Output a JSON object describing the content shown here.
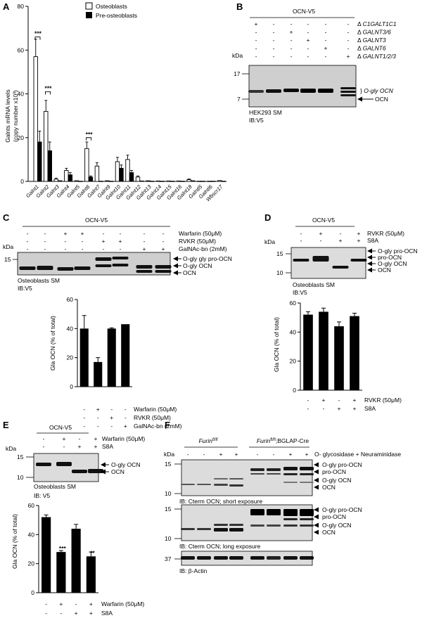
{
  "panelA": {
    "letter": "A",
    "ylabel_line1": "Galnts mRNA levels",
    "ylabel_line2": "(copy number x10³)",
    "legend": [
      "Osteoblasts",
      "Pre-osteoblasts"
    ],
    "significance": "***"
  },
  "chart_data": [
    {
      "type": "bar",
      "panel": "A",
      "ylabel": "Galnts mRNA levels (copy number x10³)",
      "ylim": [
        0,
        80
      ],
      "yticks": [
        0,
        20,
        40,
        60,
        80
      ],
      "categories": [
        "Galnt1",
        "Galnt2",
        "Galnt3",
        "Galnt4",
        "Galnt5",
        "Galnt6",
        "Galnt7",
        "Galnt9",
        "Galnt10",
        "Galnt11",
        "Galnt12",
        "Galnt13",
        "Galnt14",
        "Galnt15",
        "Galnt16",
        "Galnt18",
        "Galntl5",
        "Galntl6",
        "Wbscr17"
      ],
      "series": [
        {
          "name": "Osteoblasts",
          "values": [
            57,
            32,
            1,
            5,
            0.3,
            15,
            7,
            0.3,
            9,
            10,
            2,
            0.3,
            0.2,
            0.2,
            0.2,
            0.8,
            0.1,
            0.1,
            0.4
          ],
          "errors": [
            8,
            5,
            0.5,
            1,
            0.1,
            3,
            1.5,
            0.1,
            2,
            2,
            0.5,
            0.1,
            0.1,
            0.1,
            0.1,
            0.3,
            0.1,
            0.1,
            0.1
          ]
        },
        {
          "name": "Pre-osteoblasts",
          "values": [
            18,
            14,
            0.3,
            3,
            0.1,
            2,
            0.1,
            0.1,
            6,
            4,
            0.2,
            0.1,
            0.1,
            0.1,
            0.1,
            0.3,
            0.1,
            0.1,
            0.1
          ],
          "errors": [
            5,
            4,
            0.2,
            1,
            0.1,
            0.5,
            0.1,
            0.1,
            1.5,
            1,
            0.1,
            0.1,
            0.1,
            0.1,
            0.1,
            0.1,
            0.1,
            0.1,
            0.1
          ]
        }
      ]
    },
    {
      "type": "bar",
      "panel": "C",
      "ylabel": "Gla OCN (% of total)",
      "ylim": [
        0,
        60
      ],
      "yticks": [
        0,
        20,
        40,
        60
      ],
      "conditions": [
        "Warfarin (50μM)",
        "RVKR (50μM)",
        "GalNAc-bn (2mM)"
      ],
      "signs": [
        [
          "-",
          "+",
          "-",
          "-"
        ],
        [
          "-",
          "-",
          "+",
          "-"
        ],
        [
          "-",
          "-",
          "-",
          "+"
        ]
      ],
      "values": [
        40,
        17,
        40,
        43
      ],
      "errors": [
        9,
        3,
        0.5,
        0
      ]
    },
    {
      "type": "bar",
      "panel": "D",
      "ylabel": "Gla OCN (% of total)",
      "ylim": [
        0,
        60
      ],
      "yticks": [
        0,
        20,
        40,
        60
      ],
      "conditions": [
        "RVKR (50μM)",
        "S8A"
      ],
      "signs": [
        [
          "-",
          "+",
          "-",
          "+"
        ],
        [
          "-",
          "-",
          "+",
          "+"
        ]
      ],
      "values": [
        52,
        54,
        44,
        51
      ],
      "errors": [
        2,
        2.5,
        3,
        2
      ]
    },
    {
      "type": "bar",
      "panel": "E",
      "ylabel": "Gla OCN (% of total)",
      "ylim": [
        0,
        60
      ],
      "yticks": [
        0,
        20,
        40,
        60
      ],
      "conditions": [
        "Warfarin (50μM)",
        "S8A"
      ],
      "signs": [
        [
          "-",
          "+",
          "-",
          "+"
        ],
        [
          "-",
          "-",
          "+",
          "+"
        ]
      ],
      "values": [
        52,
        28,
        44,
        25
      ],
      "errors": [
        1.5,
        1,
        3,
        3
      ],
      "significance": [
        "",
        "***",
        "",
        "**"
      ]
    }
  ],
  "panelB": {
    "letter": "B",
    "construct": "OCN-V5",
    "rows": [
      {
        "label": "Δ C1GALT1C1",
        "signs": [
          "+",
          "-",
          "-",
          "-",
          "-",
          "-"
        ]
      },
      {
        "label": "Δ GALNT3/6",
        "signs": [
          "-",
          "-",
          "+",
          "-",
          "-",
          "-"
        ]
      },
      {
        "label": "Δ GALNT3",
        "signs": [
          "-",
          "-",
          "-",
          "+",
          "-",
          "-"
        ]
      },
      {
        "label": "Δ GALNT6",
        "signs": [
          "-",
          "-",
          "-",
          "-",
          "+",
          "-"
        ]
      },
      {
        "label": "Δ GALNT1/2/3",
        "signs": [
          "-",
          "-",
          "-",
          "-",
          "-",
          "+"
        ]
      }
    ],
    "kda": "kDa",
    "markers": [
      "17",
      "7"
    ],
    "band_labels": [
      "O-gly OCN",
      "OCN"
    ],
    "caption1": "HEK293 SM",
    "caption2": "IB:V5"
  },
  "panelC": {
    "letter": "C",
    "construct": "OCN-V5",
    "rows": [
      {
        "label": "Warfarin (50μM)",
        "signs": [
          "-",
          "-",
          "+",
          "+",
          "-",
          "-",
          "-",
          "-"
        ]
      },
      {
        "label": "RVKR (50μM)",
        "signs": [
          "-",
          "-",
          "-",
          "-",
          "+",
          "+",
          "-",
          "-"
        ]
      },
      {
        "label": "GalNAc-bn (2mM)",
        "signs": [
          "-",
          "-",
          "-",
          "-",
          "-",
          "-",
          "+",
          "+"
        ]
      }
    ],
    "kda": "kDa",
    "markers": [
      "15"
    ],
    "band_labels": [
      "O-gly gly pro-OCN",
      "O-gly OCN",
      "OCN"
    ],
    "caption1": "Osteoblasts SM",
    "caption2": "IB:V5"
  },
  "panelD": {
    "letter": "D",
    "construct": "OCN-V5",
    "rows": [
      {
        "label": "RVKR (50μM)",
        "signs": [
          "-",
          "+",
          "-",
          "+"
        ]
      },
      {
        "label": "S8A",
        "signs": [
          "-",
          "-",
          "+",
          "+"
        ]
      }
    ],
    "kda": "kDa",
    "markers": [
      "15",
      "10"
    ],
    "band_labels": [
      "O-gly pro-OCN",
      "pro-OCN",
      "O-gly OCN",
      "OCN"
    ],
    "caption1": "Osteoblasts SM",
    "caption2": "IB:V5"
  },
  "panelE": {
    "letter": "E",
    "construct": "OCN-V5",
    "rows": [
      {
        "label": "Warfarin (50μM)",
        "signs": [
          "-",
          "+",
          "-",
          "+"
        ]
      },
      {
        "label": "S8A",
        "signs": [
          "-",
          "-",
          "+",
          "+"
        ]
      }
    ],
    "kda": "kDa",
    "markers": [
      "15",
      "10"
    ],
    "band_labels": [
      "O-gly OCN",
      "OCN"
    ],
    "caption1": "Osteoblasts SM",
    "caption2": "IB: V5"
  },
  "panelF": {
    "letter": "F",
    "group1": "Furinfl/fl",
    "group2": "Furinfl/fl;BGLAP-Cre",
    "treatment": "O- glycosidase + Neuraminidase",
    "signs": [
      "-",
      "-",
      "+",
      "+",
      "-",
      "-",
      "+",
      "+"
    ],
    "kda": "kDa",
    "blots": [
      {
        "markers": [
          "15",
          "10"
        ],
        "labels": [
          "O-gly pro-OCN",
          "pro-OCN",
          "O-gly OCN",
          "OCN"
        ],
        "caption": "IB: Cterm OCN; short exposure"
      },
      {
        "markers": [
          "15",
          "10"
        ],
        "labels": [
          "O-gly pro-OCN",
          "pro-OCN",
          "O-gly OCN",
          "OCN"
        ],
        "caption": "IB: Cterm OCN; long exposure"
      },
      {
        "markers": [
          "37"
        ],
        "labels": [],
        "caption": "IB: β-Actin"
      }
    ]
  }
}
